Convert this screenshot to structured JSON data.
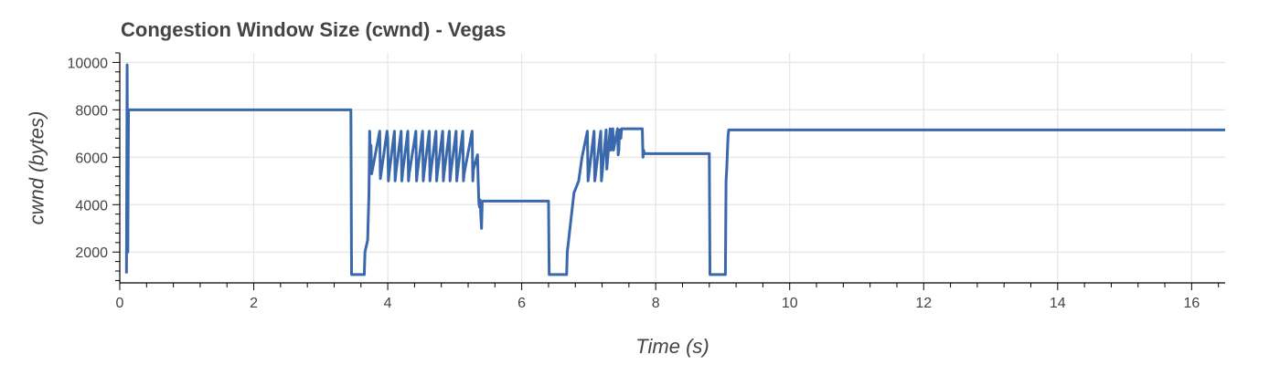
{
  "chart_data": {
    "type": "line",
    "title": "Congestion Window Size (cwnd) - Vegas",
    "xlabel": "Time (s)",
    "ylabel": "cwnd (bytes)",
    "xlim": [
      0,
      16.5
    ],
    "ylim": [
      700,
      10400
    ],
    "x_ticks": [
      0,
      2,
      4,
      6,
      8,
      10,
      12,
      14,
      16
    ],
    "y_ticks": [
      2000,
      4000,
      6000,
      8000,
      10000
    ],
    "grid": true,
    "color": "#3a68ad",
    "series": [
      {
        "x": [
          0.1,
          0.11,
          0.12,
          0.13,
          0.14,
          3.45,
          3.46,
          3.65,
          3.66,
          3.7,
          3.72,
          3.73,
          3.74,
          3.75,
          3.76,
          3.88,
          3.89,
          3.99,
          4.0,
          4.01,
          4.02,
          4.1,
          4.11,
          4.12,
          4.2,
          4.21,
          4.22,
          4.3,
          4.31,
          4.32,
          4.42,
          4.43,
          4.44,
          4.52,
          4.53,
          4.54,
          4.62,
          4.63,
          4.64,
          4.72,
          4.73,
          4.74,
          4.82,
          4.83,
          4.84,
          4.92,
          4.93,
          4.94,
          5.02,
          5.03,
          5.04,
          5.12,
          5.13,
          5.14,
          5.26,
          5.27,
          5.28,
          5.34,
          5.35,
          5.36,
          5.37,
          5.38,
          5.39,
          5.4,
          5.41,
          5.42,
          6.4,
          6.41,
          6.67,
          6.68,
          6.72,
          6.78,
          6.85,
          6.9,
          6.98,
          6.99,
          7.08,
          7.09,
          7.18,
          7.19,
          7.26,
          7.27,
          7.32,
          7.33,
          7.36,
          7.37,
          7.43,
          7.44,
          7.45,
          7.46,
          7.47,
          7.48,
          7.49,
          7.5,
          7.8,
          7.81,
          7.82,
          7.83,
          8.8,
          8.81,
          9.04,
          9.05,
          9.06,
          9.08,
          9.09,
          9.1,
          16.5
        ],
        "y": [
          1100,
          9900,
          2000,
          8000,
          8000,
          8000,
          1050,
          1050,
          2000,
          2500,
          4500,
          7100,
          6000,
          6500,
          5300,
          7100,
          5100,
          7100,
          6800,
          5000,
          5300,
          7100,
          5000,
          5300,
          7100,
          5000,
          5300,
          7100,
          5000,
          5300,
          7100,
          5000,
          5300,
          7100,
          5000,
          5300,
          7100,
          5000,
          5300,
          7100,
          5000,
          5300,
          7100,
          5000,
          5300,
          7100,
          5000,
          5300,
          7100,
          5000,
          5300,
          7100,
          5000,
          5300,
          7100,
          5000,
          5500,
          6100,
          5000,
          4100,
          3900,
          4200,
          3500,
          3000,
          4100,
          4150,
          4150,
          1050,
          1050,
          2000,
          3000,
          4500,
          5000,
          6000,
          7100,
          5000,
          7100,
          5000,
          7100,
          5000,
          7150,
          5500,
          7200,
          6300,
          7200,
          6300,
          7200,
          6100,
          6300,
          7150,
          7150,
          6800,
          7200,
          7200,
          7200,
          6000,
          6300,
          6150,
          6150,
          1050,
          1050,
          5000,
          5500,
          6900,
          7150,
          7150,
          7150
        ]
      }
    ]
  }
}
